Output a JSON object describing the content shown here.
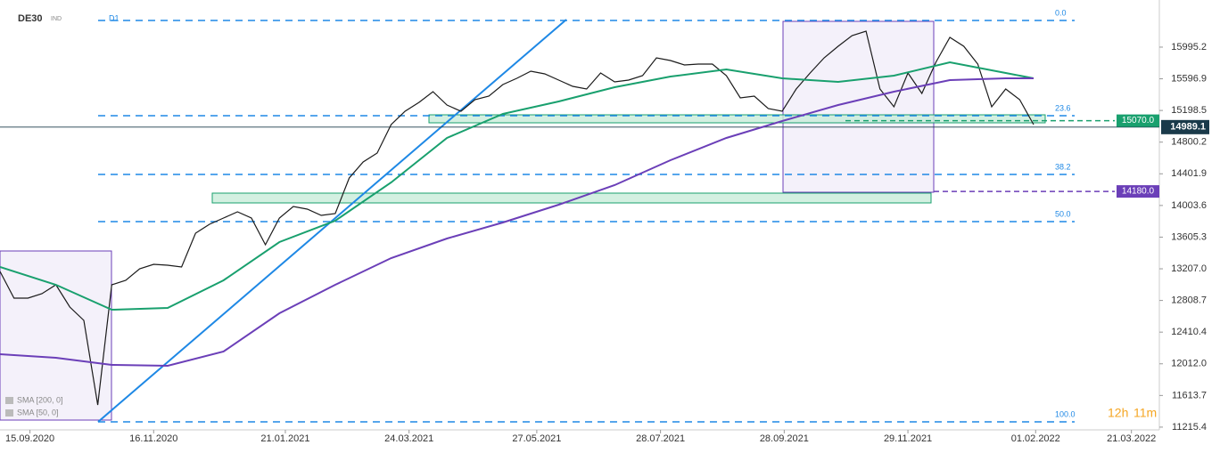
{
  "chart_data": {
    "type": "line",
    "title": "DE30",
    "subtitle": "IND",
    "timeframe": "D1",
    "timer_hours": "12h",
    "timer_minutes": "11m",
    "x": [
      "31.08.2020",
      "07.09.2020",
      "14.09.2020",
      "21.09.2020",
      "28.09.2020",
      "05.10.2020",
      "12.10.2020",
      "19.10.2020",
      "26.10.2020",
      "02.11.2020",
      "09.11.2020",
      "16.11.2020",
      "23.11.2020",
      "30.11.2020",
      "07.12.2020",
      "14.12.2020",
      "21.12.2020",
      "28.12.2020",
      "04.01.2021",
      "11.01.2021",
      "18.01.2021",
      "25.01.2021",
      "01.02.2021",
      "08.02.2021",
      "15.02.2021",
      "22.02.2021",
      "01.03.2021",
      "08.03.2021",
      "15.03.2021",
      "22.03.2021",
      "29.03.2021",
      "05.04.2021",
      "12.04.2021",
      "19.04.2021",
      "26.04.2021",
      "03.05.2021",
      "10.05.2021",
      "17.05.2021",
      "24.05.2021",
      "31.05.2021",
      "07.06.2021",
      "14.06.2021",
      "21.06.2021",
      "28.06.2021",
      "05.07.2021",
      "12.07.2021",
      "19.07.2021",
      "26.07.2021",
      "02.08.2021",
      "09.08.2021",
      "16.08.2021",
      "23.08.2021",
      "30.08.2021",
      "06.09.2021",
      "13.09.2021",
      "20.09.2021",
      "27.09.2021",
      "04.10.2021",
      "11.10.2021",
      "18.10.2021",
      "25.10.2021",
      "01.11.2021",
      "08.11.2021",
      "15.11.2021",
      "22.11.2021",
      "29.11.2021",
      "06.12.2021",
      "13.12.2021",
      "20.12.2021",
      "27.12.2021",
      "03.01.2022",
      "10.01.2022",
      "17.01.2022",
      "24.01.2022",
      "31.01.2022"
    ],
    "series": [
      {
        "color": "#1b1b1b",
        "values": [
          13174,
          12838,
          12838,
          12894,
          13006,
          12726,
          12558,
          11495,
          13006,
          13062,
          13207,
          13263,
          13252,
          13230,
          13655,
          13767,
          13845,
          13924,
          13845,
          13510,
          13845,
          13991,
          13957,
          13879,
          13901,
          14349,
          14551,
          14663,
          15021,
          15189,
          15301,
          15435,
          15267,
          15189,
          15334,
          15379,
          15525,
          15603,
          15692,
          15659,
          15581,
          15502,
          15469,
          15670,
          15558,
          15581,
          15637,
          15860,
          15827,
          15771,
          15782,
          15782,
          15637,
          15357,
          15379,
          15222,
          15189,
          15469,
          15670,
          15860,
          16006,
          16140,
          16196,
          15469,
          15245,
          15670,
          15413,
          15804,
          16118,
          16006,
          15782,
          15245,
          15469,
          15334,
          15021
        ]
      },
      {
        "name": "SMA [50, 0]",
        "color": "#19a06e",
        "x": [
          "31.08.2020",
          "28.09.2020",
          "26.10.2020",
          "23.11.2020",
          "21.12.2020",
          "18.01.2021",
          "15.02.2021",
          "15.03.2021",
          "12.04.2021",
          "10.05.2021",
          "07.06.2021",
          "05.07.2021",
          "02.08.2021",
          "30.08.2021",
          "27.09.2021",
          "25.10.2021",
          "22.11.2021",
          "20.12.2021",
          "17.01.2022",
          "31.01.2022"
        ],
        "values": [
          13230,
          13006,
          12692,
          12715,
          13062,
          13543,
          13812,
          14293,
          14853,
          15155,
          15312,
          15491,
          15625,
          15715,
          15603,
          15558,
          15637,
          15804,
          15670,
          15603
        ]
      },
      {
        "name": "SMA [200, 0]",
        "color": "#6b3fb8",
        "x": [
          "31.08.2020",
          "28.09.2020",
          "26.10.2020",
          "23.11.2020",
          "21.12.2020",
          "18.01.2021",
          "15.02.2021",
          "15.03.2021",
          "12.04.2021",
          "10.05.2021",
          "07.06.2021",
          "05.07.2021",
          "02.08.2021",
          "30.08.2021",
          "27.09.2021",
          "25.10.2021",
          "22.11.2021",
          "20.12.2021",
          "17.01.2022",
          "31.01.2022"
        ],
        "values": [
          12133,
          12088,
          11998,
          11987,
          12166,
          12648,
          13006,
          13342,
          13588,
          13789,
          14013,
          14260,
          14573,
          14853,
          15066,
          15267,
          15435,
          15581,
          15603,
          15603
        ]
      }
    ],
    "levels_color": "#1e88e5",
    "levels": [
      {
        "value": 16331,
        "label": "0.0"
      },
      {
        "value": 15133,
        "label": "23.6"
      },
      {
        "value": 14394,
        "label": "38.2"
      },
      {
        "value": 13801,
        "label": "50.0"
      },
      {
        "value": 11282,
        "label": "100.0"
      }
    ],
    "price_lines": [
      {
        "value": 15070,
        "label": "15070.0",
        "color": "#19a06e"
      },
      {
        "value": 14180,
        "label": "14180.0",
        "color": "#6b3fb8"
      }
    ],
    "last_price": 14989.1,
    "xlim": [
      "31.08.2020",
      "04.04.2022"
    ],
    "xticks": [
      "15.09.2020",
      "16.11.2020",
      "21.01.2021",
      "24.03.2021",
      "27.05.2021",
      "28.07.2021",
      "28.09.2021",
      "29.11.2021",
      "01.02.2022",
      "21.03.2022"
    ],
    "ylim": [
      11181,
      16588
    ],
    "yticks": [
      15995.2,
      15596.9,
      15198.5,
      14800.2,
      14401.9,
      14003.6,
      13605.3,
      {
        "value": 13207,
        "label": "13207.0"
      },
      12808.7,
      12410.4,
      {
        "value": 12012,
        "label": "12012.0"
      },
      11613.7,
      11215.4
    ],
    "grid": false
  }
}
